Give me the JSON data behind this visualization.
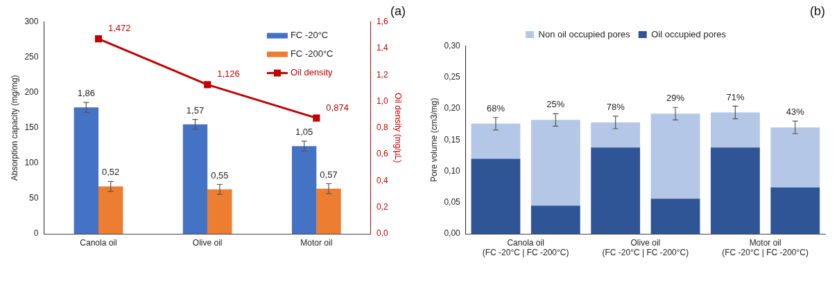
{
  "chart_data": [
    {
      "type": "bar",
      "title": "(a)",
      "categories": [
        "Canola oil",
        "Olive oil",
        "Motor oil"
      ],
      "ylabel": "Absorption capacity (mg/mg)",
      "y2label": "Oil density (mg/µL)",
      "ylim": [
        0,
        300
      ],
      "yticks": [
        0,
        50,
        100,
        150,
        200,
        250,
        300
      ],
      "y2lim": [
        0,
        1.6
      ],
      "y2ticks": [
        {
          "value": 0,
          "label": "0,0"
        },
        {
          "value": 0.2,
          "label": "0,2"
        },
        {
          "value": 0.4,
          "label": "0,4"
        },
        {
          "value": 0.6,
          "label": "0,6"
        },
        {
          "value": 0.8,
          "label": "0,8"
        },
        {
          "value": 1,
          "label": "1,0"
        },
        {
          "value": 1.2,
          "label": "1,2"
        },
        {
          "value": 1.4,
          "label": "1,4"
        },
        {
          "value": 1.6,
          "label": "1,6"
        }
      ],
      "grid": false,
      "legend": "top right",
      "annotations": [
        {
          "text": "1,86",
          "x": "Canola oil",
          "y": 179
        },
        {
          "text": "1,57",
          "x": "Olive oil",
          "y": 155
        },
        {
          "text": "1,05",
          "x": "Motor oil",
          "y": 124
        },
        {
          "text": "0,52",
          "x": "Canola oil",
          "y": 67
        },
        {
          "text": "0,55",
          "x": "Olive oil",
          "y": 63
        },
        {
          "text": "0,57",
          "x": "Motor oil",
          "y": 64
        }
      ],
      "series": [
        {
          "name": "FC -20°C",
          "color": "#4472c4",
          "values": [
            179,
            155,
            124
          ],
          "errors": [
            7,
            7,
            7
          ]
        },
        {
          "name": "FC -200°C",
          "color": "#ed7d31",
          "values": [
            67,
            63,
            64
          ],
          "errors": [
            7,
            7,
            7
          ]
        },
        {
          "name": "Oil density",
          "type": "line",
          "axis": "y2",
          "color": "#c00000",
          "marker": "square",
          "line_style": "solid",
          "values": [
            1.472,
            1.126,
            0.874
          ],
          "value_labels": [
            "1,472",
            "1,126",
            "0,874"
          ]
        }
      ]
    },
    {
      "type": "bar",
      "title": "(b)",
      "stacked": true,
      "categories": [
        "Canola oil\n(FC -20°C | FC -200°C)",
        null,
        "Olive oil\n(FC -20°C | FC -200°C)",
        null,
        "Motor oil\n(FC -20°C | FC -200°C)",
        null
      ],
      "ylabel": "Pore volume (cm3/mg)",
      "ylim": [
        0,
        0.3
      ],
      "yticks": [
        {
          "value": 0,
          "label": "0,00"
        },
        {
          "value": 0.05,
          "label": "0,05"
        },
        {
          "value": 0.1,
          "label": "0,10"
        },
        {
          "value": 0.15,
          "label": "0,15"
        },
        {
          "value": 0.2,
          "label": "0,20"
        },
        {
          "value": 0.25,
          "label": "0,25"
        },
        {
          "value": 0.3,
          "label": "0,30"
        }
      ],
      "grid": false,
      "legend": "top",
      "series": [
        {
          "name": "Oil occupied pores",
          "color": "#2f5597",
          "values": [
            0.12,
            0.045,
            0.138,
            0.056,
            0.138,
            0.074
          ]
        },
        {
          "name": "Non oil occupied pores",
          "color": "#b4c7e7",
          "values": [
            0.056,
            0.137,
            0.04,
            0.136,
            0.056,
            0.096
          ],
          "errors": [
            0.01,
            0.01,
            0.01,
            0.01,
            0.01,
            0.01
          ]
        }
      ],
      "annotations": [
        "68%",
        "25%",
        "78%",
        "29%",
        "71%",
        "43%"
      ]
    }
  ]
}
